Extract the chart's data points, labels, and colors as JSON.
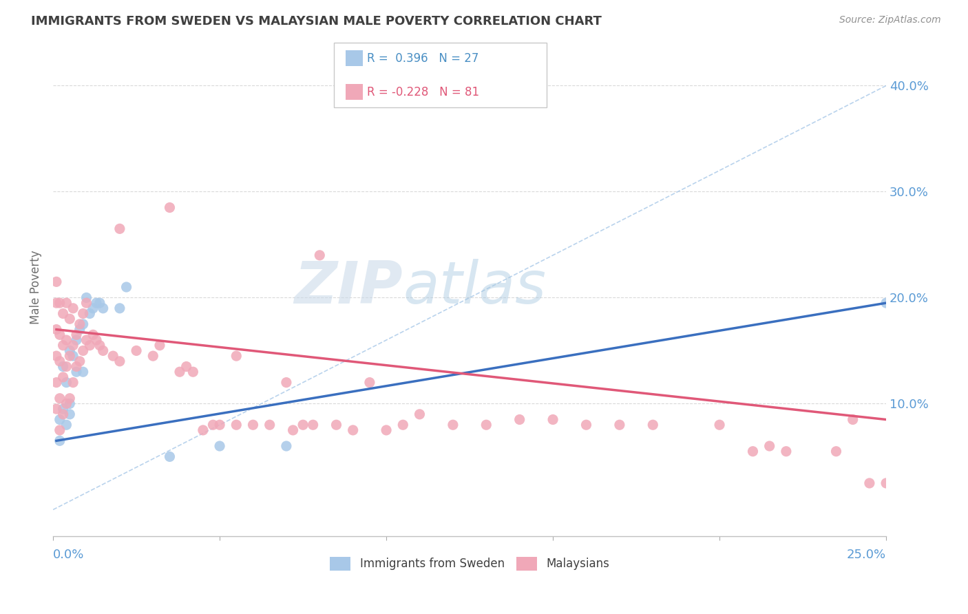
{
  "title": "IMMIGRANTS FROM SWEDEN VS MALAYSIAN MALE POVERTY CORRELATION CHART",
  "source": "Source: ZipAtlas.com",
  "ylabel": "Male Poverty",
  "y_tick_labels": [
    "10.0%",
    "20.0%",
    "30.0%",
    "40.0%"
  ],
  "y_tick_values": [
    0.1,
    0.2,
    0.3,
    0.4
  ],
  "xlim": [
    0.0,
    0.25
  ],
  "ylim": [
    -0.025,
    0.445
  ],
  "legend_r1": "R =  0.396",
  "legend_n1": "N = 27",
  "legend_r2": "R = -0.228",
  "legend_n2": "N = 81",
  "watermark_zip": "ZIP",
  "watermark_atlas": "atlas",
  "blue_color": "#a8c8e8",
  "pink_color": "#f0a8b8",
  "title_color": "#404040",
  "axis_label_color": "#5b9bd5",
  "blue_scatter": [
    [
      0.002,
      0.085
    ],
    [
      0.002,
      0.065
    ],
    [
      0.003,
      0.095
    ],
    [
      0.003,
      0.135
    ],
    [
      0.004,
      0.08
    ],
    [
      0.004,
      0.12
    ],
    [
      0.005,
      0.1
    ],
    [
      0.005,
      0.15
    ],
    [
      0.005,
      0.09
    ],
    [
      0.006,
      0.145
    ],
    [
      0.007,
      0.13
    ],
    [
      0.007,
      0.16
    ],
    [
      0.008,
      0.17
    ],
    [
      0.009,
      0.13
    ],
    [
      0.009,
      0.175
    ],
    [
      0.01,
      0.2
    ],
    [
      0.011,
      0.185
    ],
    [
      0.012,
      0.19
    ],
    [
      0.013,
      0.195
    ],
    [
      0.014,
      0.195
    ],
    [
      0.015,
      0.19
    ],
    [
      0.02,
      0.19
    ],
    [
      0.022,
      0.21
    ],
    [
      0.035,
      0.05
    ],
    [
      0.05,
      0.06
    ],
    [
      0.07,
      0.06
    ],
    [
      0.25,
      0.195
    ]
  ],
  "pink_scatter": [
    [
      0.001,
      0.095
    ],
    [
      0.001,
      0.12
    ],
    [
      0.001,
      0.145
    ],
    [
      0.001,
      0.17
    ],
    [
      0.001,
      0.195
    ],
    [
      0.001,
      0.215
    ],
    [
      0.002,
      0.075
    ],
    [
      0.002,
      0.105
    ],
    [
      0.002,
      0.14
    ],
    [
      0.002,
      0.165
    ],
    [
      0.002,
      0.195
    ],
    [
      0.003,
      0.09
    ],
    [
      0.003,
      0.125
    ],
    [
      0.003,
      0.155
    ],
    [
      0.003,
      0.185
    ],
    [
      0.004,
      0.1
    ],
    [
      0.004,
      0.135
    ],
    [
      0.004,
      0.16
    ],
    [
      0.004,
      0.195
    ],
    [
      0.005,
      0.105
    ],
    [
      0.005,
      0.145
    ],
    [
      0.005,
      0.18
    ],
    [
      0.006,
      0.12
    ],
    [
      0.006,
      0.155
    ],
    [
      0.006,
      0.19
    ],
    [
      0.007,
      0.135
    ],
    [
      0.007,
      0.165
    ],
    [
      0.008,
      0.14
    ],
    [
      0.008,
      0.175
    ],
    [
      0.009,
      0.15
    ],
    [
      0.009,
      0.185
    ],
    [
      0.01,
      0.16
    ],
    [
      0.01,
      0.195
    ],
    [
      0.011,
      0.155
    ],
    [
      0.012,
      0.165
    ],
    [
      0.013,
      0.16
    ],
    [
      0.014,
      0.155
    ],
    [
      0.015,
      0.15
    ],
    [
      0.018,
      0.145
    ],
    [
      0.02,
      0.14
    ],
    [
      0.02,
      0.265
    ],
    [
      0.025,
      0.15
    ],
    [
      0.03,
      0.145
    ],
    [
      0.032,
      0.155
    ],
    [
      0.035,
      0.285
    ],
    [
      0.038,
      0.13
    ],
    [
      0.04,
      0.135
    ],
    [
      0.042,
      0.13
    ],
    [
      0.045,
      0.075
    ],
    [
      0.048,
      0.08
    ],
    [
      0.05,
      0.08
    ],
    [
      0.055,
      0.08
    ],
    [
      0.055,
      0.145
    ],
    [
      0.06,
      0.08
    ],
    [
      0.065,
      0.08
    ],
    [
      0.07,
      0.12
    ],
    [
      0.072,
      0.075
    ],
    [
      0.075,
      0.08
    ],
    [
      0.078,
      0.08
    ],
    [
      0.08,
      0.24
    ],
    [
      0.085,
      0.08
    ],
    [
      0.09,
      0.075
    ],
    [
      0.095,
      0.12
    ],
    [
      0.1,
      0.075
    ],
    [
      0.105,
      0.08
    ],
    [
      0.11,
      0.09
    ],
    [
      0.12,
      0.08
    ],
    [
      0.13,
      0.08
    ],
    [
      0.14,
      0.085
    ],
    [
      0.15,
      0.085
    ],
    [
      0.16,
      0.08
    ],
    [
      0.17,
      0.08
    ],
    [
      0.18,
      0.08
    ],
    [
      0.2,
      0.08
    ],
    [
      0.21,
      0.055
    ],
    [
      0.215,
      0.06
    ],
    [
      0.22,
      0.055
    ],
    [
      0.235,
      0.055
    ],
    [
      0.24,
      0.085
    ],
    [
      0.245,
      0.025
    ],
    [
      0.25,
      0.025
    ]
  ],
  "blue_trend_x": [
    0.001,
    0.25
  ],
  "blue_trend_y": [
    0.065,
    0.195
  ],
  "pink_trend_x": [
    0.001,
    0.25
  ],
  "pink_trend_y": [
    0.17,
    0.085
  ],
  "diag_line_x": [
    0.0,
    0.25
  ],
  "diag_line_y": [
    0.0,
    0.4
  ]
}
